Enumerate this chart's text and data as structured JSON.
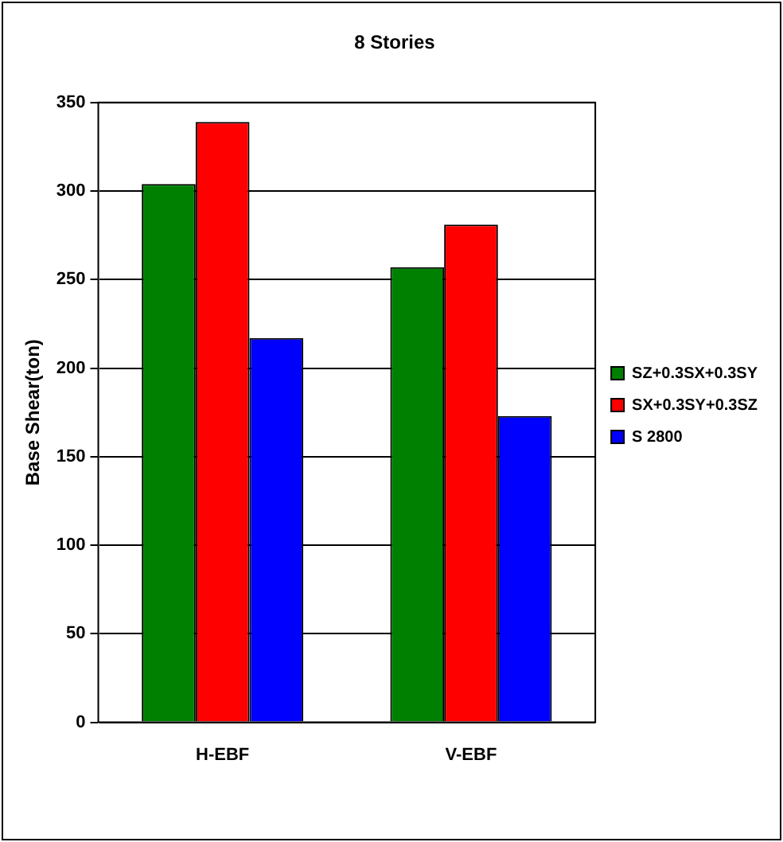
{
  "chart_data": {
    "type": "bar",
    "title": "8 Stories",
    "ylabel": "Base Shear(ton)",
    "categories": [
      "H-EBF",
      "V-EBF"
    ],
    "series": [
      {
        "name": "SZ+0.3SX+0.3SY",
        "color": "#008000",
        "values": [
          304,
          257
        ]
      },
      {
        "name": "SX+0.3SY+0.3SZ",
        "color": "#ff0000",
        "values": [
          339,
          281
        ]
      },
      {
        "name": "S 2800",
        "color": "#0000ff",
        "values": [
          217,
          173
        ]
      }
    ],
    "ylim": [
      0,
      350
    ],
    "yticks": [
      0,
      50,
      100,
      150,
      200,
      250,
      300,
      350
    ],
    "grid": "y",
    "legend": "right"
  }
}
